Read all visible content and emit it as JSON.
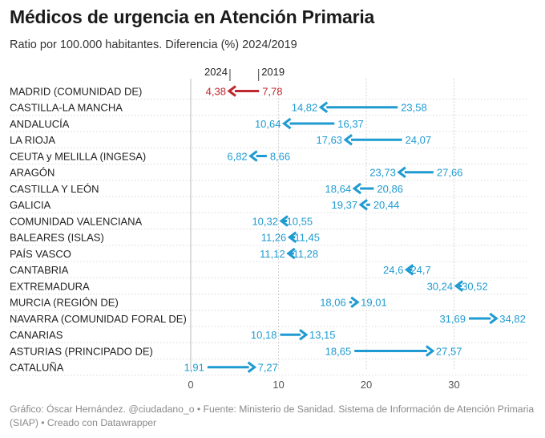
{
  "title": "Médicos de urgencia en Atención Primaria",
  "subtitle": "Ratio por 100.000 habitantes. Diferencia (%) 2024/2019",
  "footer": "Gráfico: Óscar Hernández. @ciudadano_o • Fuente: Ministerio de Sanidad. Sistema de Información de Atención Primaria (SIAP) • Creado con Datawrapper",
  "colors": {
    "decrease": "#c0262d",
    "increase": "#1f9bd1",
    "grid": "#cccccc",
    "text": "#222222"
  },
  "chart_data": {
    "type": "arrow",
    "xlim": [
      0,
      38
    ],
    "x_ticks": [
      "0",
      "10",
      "20",
      "30"
    ],
    "x_tick_values": [
      0,
      10,
      20,
      30
    ],
    "grid": true,
    "legend_labels": {
      "start": "2019",
      "end": "2024"
    },
    "rows": [
      {
        "label": "MADRID (COMUNIDAD DE)",
        "start": 7.78,
        "end": 4.38,
        "start_label": "7,78",
        "end_label": "4,38",
        "highlight": true
      },
      {
        "label": "CASTILLA-LA MANCHA",
        "start": 23.58,
        "end": 14.82,
        "start_label": "23,58",
        "end_label": "14,82"
      },
      {
        "label": "ANDALUCÍA",
        "start": 16.37,
        "end": 10.64,
        "start_label": "16,37",
        "end_label": "10,64"
      },
      {
        "label": "LA RIOJA",
        "start": 24.07,
        "end": 17.63,
        "start_label": "24,07",
        "end_label": "17,63"
      },
      {
        "label": "CEUTA y MELILLA (INGESA)",
        "start": 8.66,
        "end": 6.82,
        "start_label": "8,66",
        "end_label": "6,82"
      },
      {
        "label": "ARAGÓN",
        "start": 27.66,
        "end": 23.73,
        "start_label": "27,66",
        "end_label": "23,73"
      },
      {
        "label": "CASTILLA Y LEÓN",
        "start": 20.86,
        "end": 18.64,
        "start_label": "20,86",
        "end_label": "18,64"
      },
      {
        "label": "GALICIA",
        "start": 20.44,
        "end": 19.37,
        "start_label": "20,44",
        "end_label": "19,37"
      },
      {
        "label": "COMUNIDAD VALENCIANA",
        "start": 10.55,
        "end": 10.32,
        "start_label": "10,55",
        "end_label": "10,32"
      },
      {
        "label": "BALEARES (ISLAS)",
        "start": 11.45,
        "end": 11.26,
        "start_label": "11,45",
        "end_label": "11,26"
      },
      {
        "label": "PAÍS VASCO",
        "start": 11.28,
        "end": 11.12,
        "start_label": "11,28",
        "end_label": "11,12"
      },
      {
        "label": "CANTABRIA",
        "start": 24.7,
        "end": 24.6,
        "start_label": "24,7",
        "end_label": "24,6"
      },
      {
        "label": "EXTREMADURA",
        "start": 30.52,
        "end": 30.24,
        "start_label": "30,52",
        "end_label": "30,24"
      },
      {
        "label": "MURCIA (REGIÓN DE)",
        "start": 18.06,
        "end": 19.01,
        "start_label": "18,06",
        "end_label": "19,01"
      },
      {
        "label": "NAVARRA (COMUNIDAD FORAL DE)",
        "start": 31.69,
        "end": 34.82,
        "start_label": "31,69",
        "end_label": "34,82"
      },
      {
        "label": "CANARIAS",
        "start": 10.18,
        "end": 13.15,
        "start_label": "10,18",
        "end_label": "13,15"
      },
      {
        "label": "ASTURIAS (PRINCIPADO DE)",
        "start": 18.65,
        "end": 27.57,
        "start_label": "18,65",
        "end_label": "27,57"
      },
      {
        "label": "CATALUÑA",
        "start": 1.91,
        "end": 7.27,
        "start_label": "1,91",
        "end_label": "7,27"
      }
    ]
  }
}
